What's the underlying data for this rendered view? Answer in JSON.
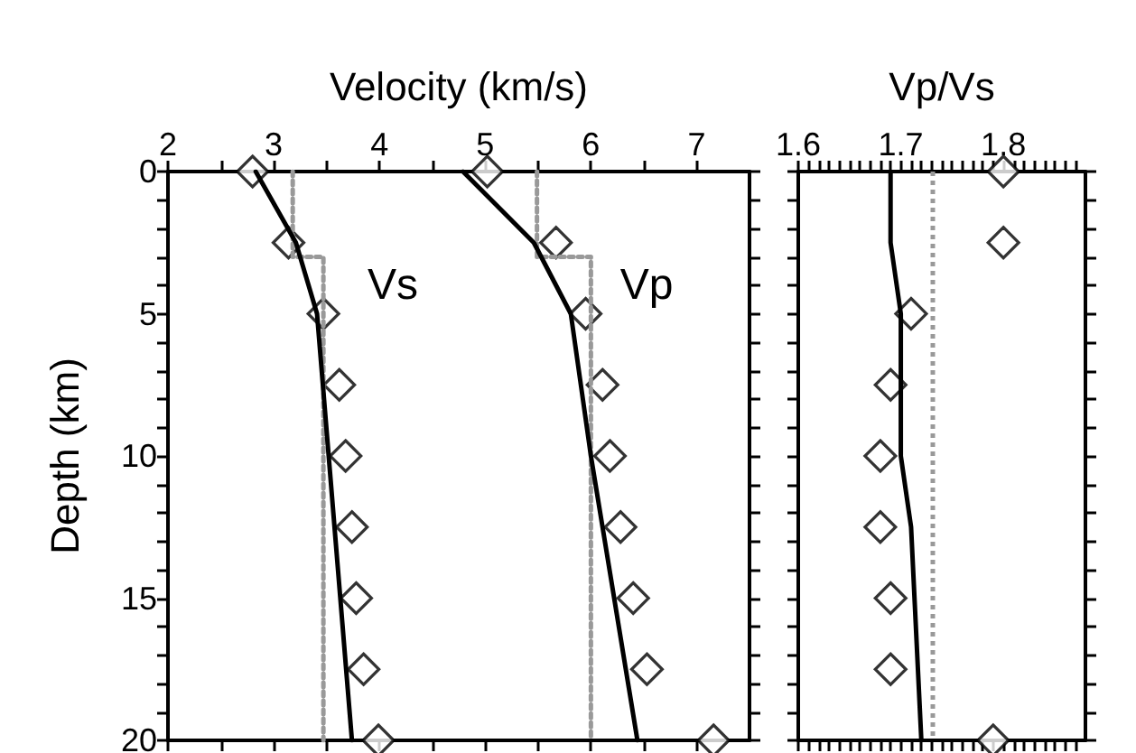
{
  "chart_data": [
    {
      "type": "line",
      "xlabel": "Velocity (km/s)",
      "ylabel": "Depth (km)",
      "xlim": [
        2,
        7.5
      ],
      "xticks": [
        2,
        {
          "value": 2.5,
          "label": null
        },
        3,
        {
          "value": 3.5,
          "label": null
        },
        4,
        {
          "value": 4.5,
          "label": null
        },
        5,
        {
          "value": 5.5,
          "label": null
        },
        6,
        {
          "value": 6.5,
          "label": null
        },
        7
      ],
      "ylim": [
        20,
        0
      ],
      "yticks": [
        0,
        {
          "value": 1,
          "label": null
        },
        {
          "value": 2,
          "label": null
        },
        {
          "value": 3,
          "label": null
        },
        {
          "value": 4,
          "label": null
        },
        5,
        {
          "value": 6,
          "label": null
        },
        {
          "value": 7,
          "label": null
        },
        {
          "value": 8,
          "label": null
        },
        {
          "value": 9,
          "label": null
        },
        10,
        {
          "value": 11,
          "label": null
        },
        {
          "value": 12,
          "label": null
        },
        {
          "value": 13,
          "label": null
        },
        {
          "value": 14,
          "label": null
        },
        15,
        {
          "value": 16,
          "label": null
        },
        {
          "value": 17,
          "label": null
        },
        {
          "value": 18,
          "label": null
        },
        {
          "value": 19,
          "label": null
        },
        20
      ],
      "grid": false,
      "series": [
        {
          "type": "line",
          "color": "#999999",
          "line_style": "dotted",
          "marker": "none",
          "x": [
            3.18,
            3.18,
            3.47,
            3.47
          ],
          "values": [
            0,
            3,
            3,
            20
          ]
        },
        {
          "type": "line",
          "color": "#999999",
          "line_style": "dotted",
          "marker": "none",
          "x": [
            5.49,
            5.49,
            6.0,
            6.0
          ],
          "values": [
            0,
            3,
            3,
            20
          ]
        },
        {
          "type": "line",
          "name": "Vs",
          "color": "#000000",
          "line_style": "solid",
          "marker": "none",
          "x": [
            2.83,
            3.21,
            3.41,
            3.52,
            3.74
          ],
          "values": [
            0,
            2.5,
            5,
            10,
            20
          ]
        },
        {
          "type": "line",
          "name": "Vp",
          "color": "#000000",
          "line_style": "solid",
          "marker": "none",
          "x": [
            4.79,
            5.46,
            5.81,
            6.0,
            6.44
          ],
          "values": [
            0,
            2.5,
            5,
            10,
            20
          ]
        },
        {
          "type": "scatter",
          "color": "#000000",
          "marker": "diamond",
          "x": [
            2.8,
            3.14,
            3.47,
            3.62,
            3.68,
            3.74,
            3.78,
            3.85,
            3.99
          ],
          "values": [
            0,
            2.5,
            5,
            7.5,
            10,
            12.5,
            15,
            17.5,
            20
          ]
        },
        {
          "type": "scatter",
          "color": "#000000",
          "marker": "diamond",
          "x": [
            5.02,
            5.67,
            5.95,
            6.11,
            6.18,
            6.28,
            6.4,
            6.53,
            7.16
          ],
          "values": [
            0,
            2.5,
            5,
            7.5,
            10,
            12.5,
            15,
            17.5,
            20
          ]
        }
      ]
    },
    {
      "type": "line",
      "xlabel": "Vp/Vs",
      "xlim": [
        1.6,
        1.88
      ],
      "xticks": [
        1.6,
        {
          "value": 1.61,
          "label": null
        },
        {
          "value": 1.62,
          "label": null
        },
        {
          "value": 1.63,
          "label": null
        },
        {
          "value": 1.64,
          "label": null
        },
        {
          "value": 1.65,
          "label": null
        },
        {
          "value": 1.66,
          "label": null
        },
        {
          "value": 1.67,
          "label": null
        },
        {
          "value": 1.68,
          "label": null
        },
        {
          "value": 1.69,
          "label": null
        },
        1.7,
        {
          "value": 1.71,
          "label": null
        },
        {
          "value": 1.72,
          "label": null
        },
        {
          "value": 1.73,
          "label": null
        },
        {
          "value": 1.74,
          "label": null
        },
        {
          "value": 1.75,
          "label": null
        },
        {
          "value": 1.76,
          "label": null
        },
        {
          "value": 1.77,
          "label": null
        },
        {
          "value": 1.78,
          "label": null
        },
        {
          "value": 1.79,
          "label": null
        },
        1.8,
        {
          "value": 1.81,
          "label": null
        },
        {
          "value": 1.82,
          "label": null
        },
        {
          "value": 1.83,
          "label": null
        },
        {
          "value": 1.84,
          "label": null
        },
        {
          "value": 1.85,
          "label": null
        },
        {
          "value": 1.86,
          "label": null
        },
        {
          "value": 1.87,
          "label": null
        }
      ],
      "ylim": [
        20,
        0
      ],
      "yticks": [
        0,
        {
          "value": 1,
          "label": null
        },
        {
          "value": 2,
          "label": null
        },
        {
          "value": 3,
          "label": null
        },
        {
          "value": 4,
          "label": null
        },
        5,
        {
          "value": 6,
          "label": null
        },
        {
          "value": 7,
          "label": null
        },
        {
          "value": 8,
          "label": null
        },
        {
          "value": 9,
          "label": null
        },
        10,
        {
          "value": 11,
          "label": null
        },
        {
          "value": 12,
          "label": null
        },
        {
          "value": 13,
          "label": null
        },
        {
          "value": 14,
          "label": null
        },
        15,
        {
          "value": 16,
          "label": null
        },
        {
          "value": 17,
          "label": null
        },
        {
          "value": 18,
          "label": null
        },
        {
          "value": 19,
          "label": null
        },
        20
      ],
      "tick_labels": "x",
      "grid": false,
      "ref_lines": [
        {
          "axis": "x",
          "value": 1.73,
          "color": "#999999",
          "line_style": "dotted"
        }
      ],
      "series": [
        {
          "type": "line",
          "color": "#000000",
          "line_style": "solid",
          "marker": "none",
          "x": [
            1.69,
            1.69,
            1.7,
            1.7,
            1.71,
            1.72
          ],
          "values": [
            0,
            2.5,
            5,
            10,
            12.5,
            20
          ]
        },
        {
          "type": "scatter",
          "color": "#000000",
          "marker": "diamond",
          "x": [
            1.8,
            1.8,
            1.71,
            1.69,
            1.68,
            1.68,
            1.69,
            1.69,
            1.79
          ],
          "values": [
            0,
            2.5,
            5,
            7.5,
            10,
            12.5,
            15,
            17.5,
            20
          ]
        }
      ]
    }
  ]
}
